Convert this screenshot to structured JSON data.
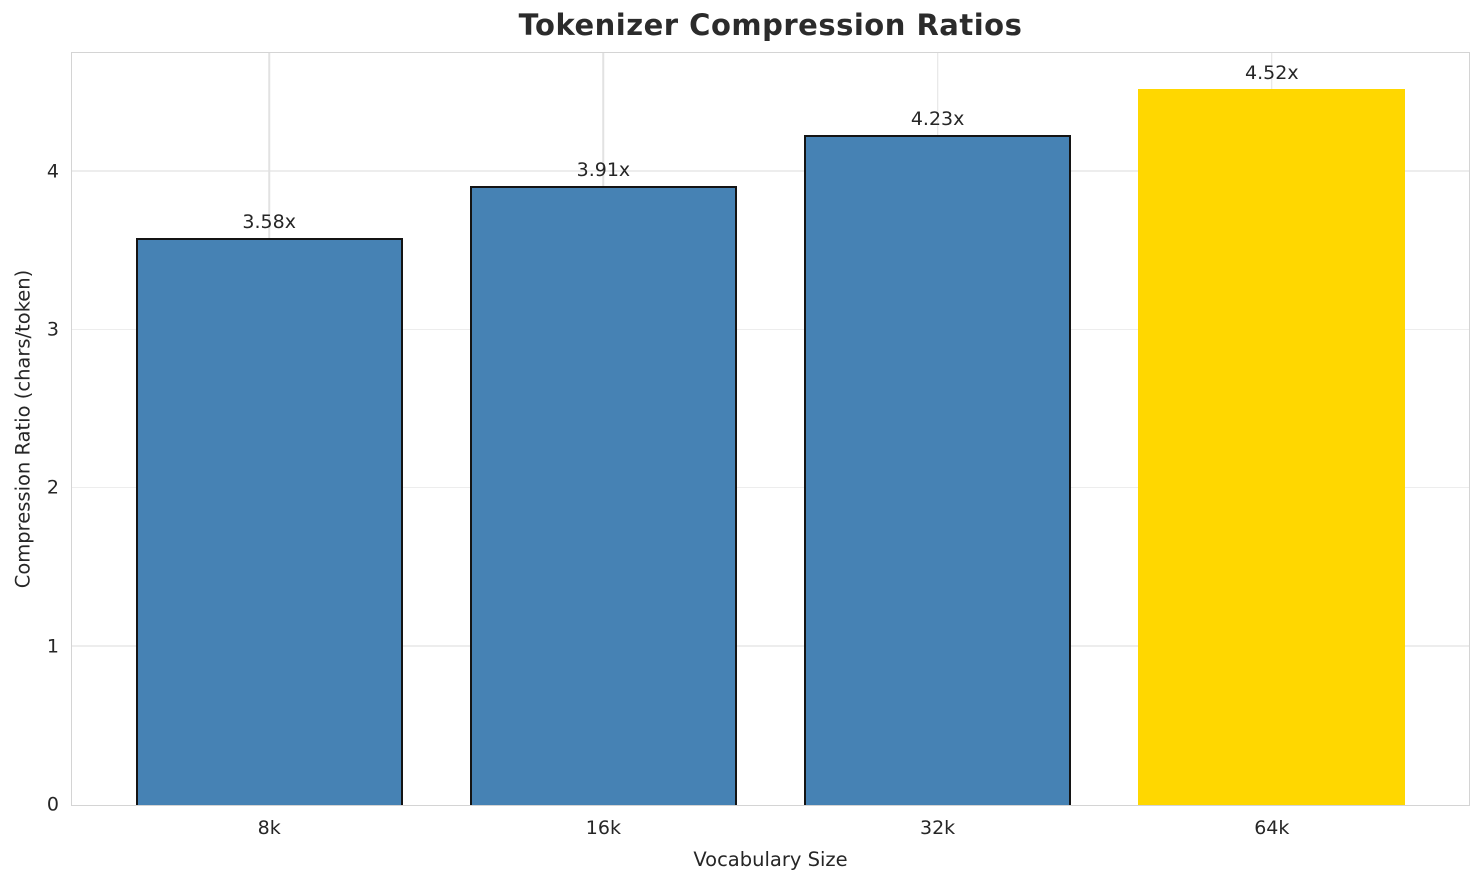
{
  "chart_data": {
    "type": "bar",
    "title": "Tokenizer Compression Ratios",
    "xlabel": "Vocabulary Size",
    "ylabel": "Compression Ratio (chars/token)",
    "categories": [
      "8k",
      "16k",
      "32k",
      "64k"
    ],
    "values": [
      3.58,
      3.91,
      4.23,
      4.52
    ],
    "bar_labels": [
      "3.58x",
      "3.91x",
      "4.23x",
      "4.52x"
    ],
    "yticks": [
      0,
      1,
      2,
      3,
      4
    ],
    "ylim": [
      0,
      4.75
    ],
    "xlim": [
      -0.59,
      3.59
    ],
    "bar_width": 0.8,
    "grid": true,
    "legend": false,
    "highlight_index": 3,
    "colors": {
      "bar": "#4682B4",
      "highlight_bar": "#FFD700",
      "bar_edge": "#141414",
      "grid_horizontal": "#ededed",
      "grid_vertical": "#e2e2e2",
      "spine": "#d4d4d4",
      "tick_text": "#262626",
      "title_text": "#2b2b2b",
      "background": "#ffffff"
    }
  }
}
